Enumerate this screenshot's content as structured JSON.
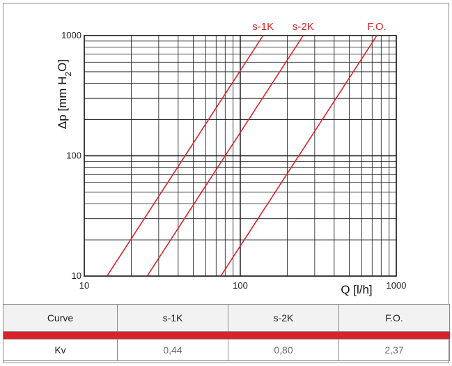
{
  "colors": {
    "curve": "#d8232a",
    "grid": "#111111",
    "frame": "#8c8c8c",
    "header_bg": "#f2f2f2"
  },
  "chart_data": {
    "type": "line",
    "x_scale": "log",
    "y_scale": "log",
    "xlim": [
      10,
      1000
    ],
    "ylim": [
      10,
      1000
    ],
    "x_ticks": [
      "10",
      "100",
      "1000"
    ],
    "y_ticks": [
      "10",
      "100",
      "1000"
    ],
    "xlabel": "Q [l/h]",
    "ylabel_parts": {
      "main": "Δp [mm H",
      "sub": "2",
      "end": "O]"
    },
    "grid": true,
    "series": [
      {
        "name": "s-1K",
        "x": [
          14,
          140
        ],
        "y": [
          10,
          1000
        ]
      },
      {
        "name": "s-2K",
        "x": [
          25.3,
          253
        ],
        "y": [
          10,
          1000
        ]
      },
      {
        "name": "F.O.",
        "x": [
          75,
          750
        ],
        "y": [
          10,
          1000
        ]
      }
    ]
  },
  "table": {
    "header": [
      "Curve",
      "s-1K",
      "s-2K",
      "F.O."
    ],
    "row_label": "Kv",
    "row_values": [
      "0,44",
      "0,80",
      "2,37"
    ]
  }
}
